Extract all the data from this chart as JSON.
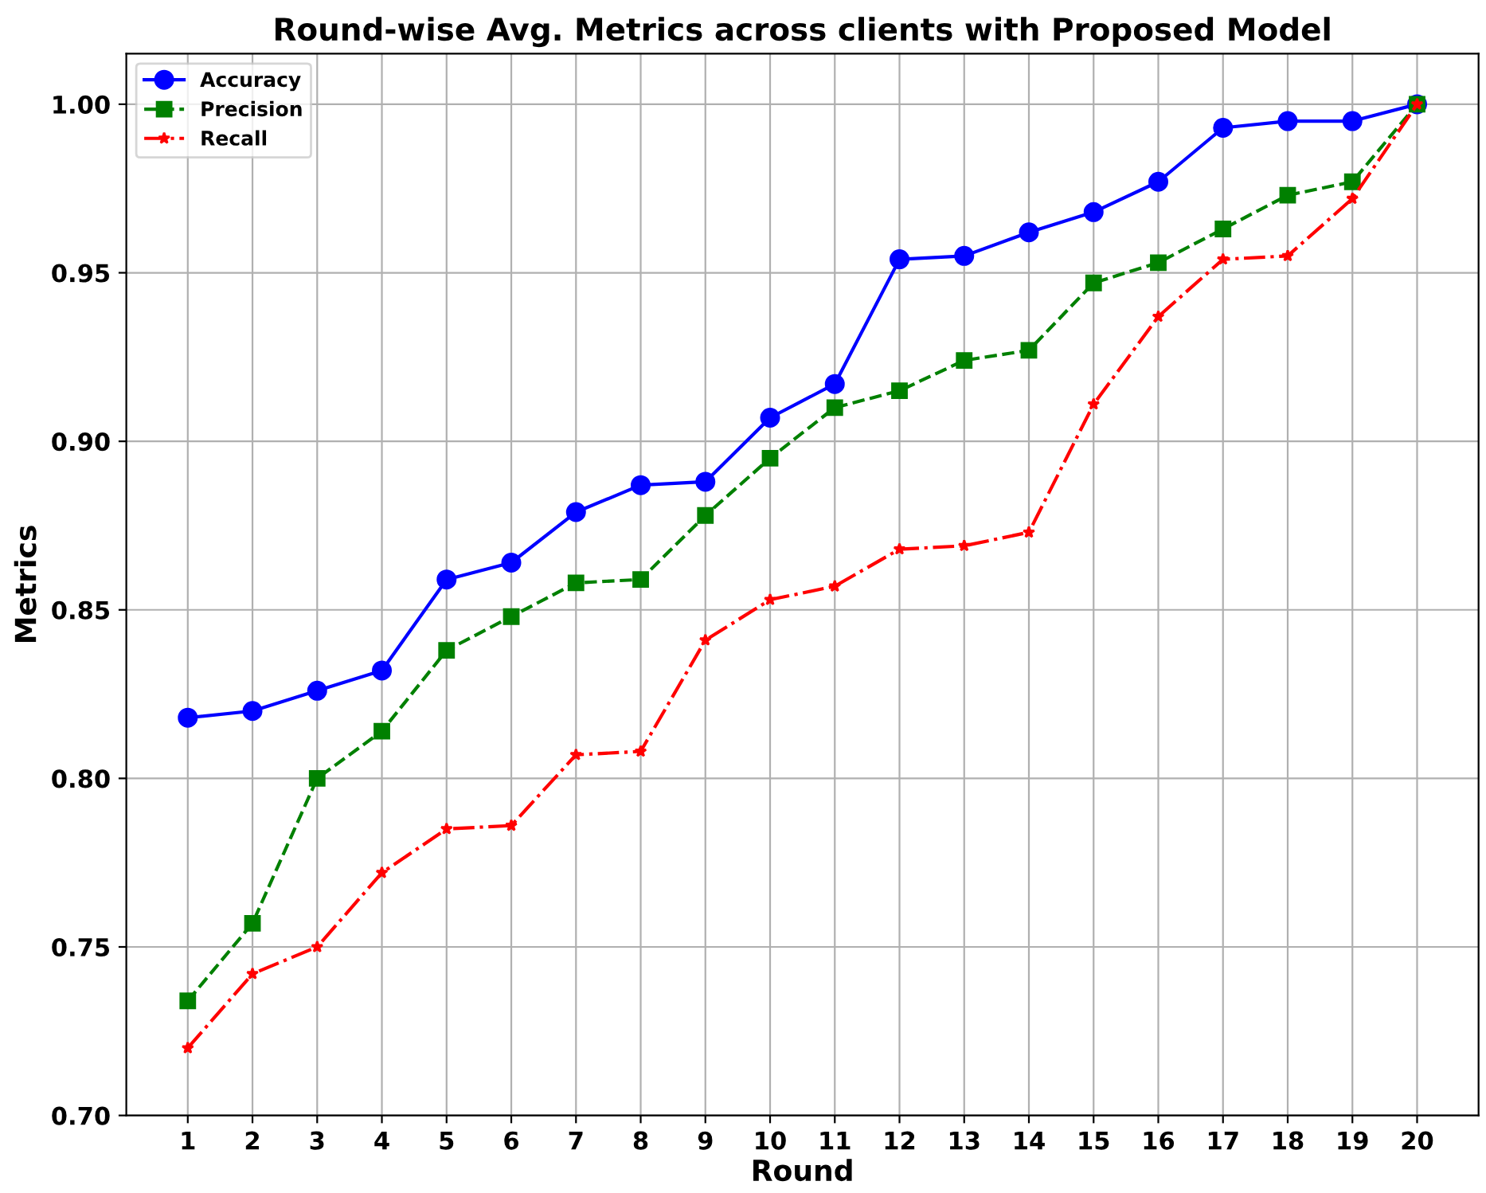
{
  "chart_data": {
    "type": "line",
    "title": "Round-wise Avg. Metrics across clients with Proposed Model",
    "xlabel": "Round",
    "ylabel": "Metrics",
    "x": [
      1,
      2,
      3,
      4,
      5,
      6,
      7,
      8,
      9,
      10,
      11,
      12,
      13,
      14,
      15,
      16,
      17,
      18,
      19,
      20
    ],
    "series": [
      {
        "name": "Accuracy",
        "color": "#0000ff",
        "marker": "circle",
        "line_style": "solid",
        "values": [
          0.818,
          0.82,
          0.826,
          0.832,
          0.859,
          0.864,
          0.879,
          0.887,
          0.888,
          0.907,
          0.917,
          0.954,
          0.955,
          0.962,
          0.968,
          0.977,
          0.993,
          0.995,
          0.995,
          1.0
        ]
      },
      {
        "name": "Precision",
        "color": "#008000",
        "marker": "square",
        "line_style": "dashed",
        "values": [
          0.734,
          0.757,
          0.8,
          0.814,
          0.838,
          0.848,
          0.858,
          0.859,
          0.878,
          0.895,
          0.91,
          0.915,
          0.924,
          0.927,
          0.947,
          0.953,
          0.963,
          0.973,
          0.977,
          1.0
        ]
      },
      {
        "name": "Recall",
        "color": "#ff0000",
        "marker": "star",
        "line_style": "dashdot",
        "values": [
          0.72,
          0.742,
          0.75,
          0.772,
          0.785,
          0.786,
          0.807,
          0.808,
          0.841,
          0.853,
          0.857,
          0.868,
          0.869,
          0.873,
          0.911,
          0.937,
          0.954,
          0.955,
          0.972,
          1.0
        ]
      }
    ],
    "xlim": [
      0.05,
      20.95
    ],
    "xticks": [
      1,
      2,
      3,
      4,
      5,
      6,
      7,
      8,
      9,
      10,
      11,
      12,
      13,
      14,
      15,
      16,
      17,
      18,
      19,
      20
    ],
    "ylim": [
      0.7,
      1.015
    ],
    "yticks": [
      {
        "value": 0.7,
        "label": "0.70"
      },
      {
        "value": 0.75,
        "label": "0.75"
      },
      {
        "value": 0.8,
        "label": "0.80"
      },
      {
        "value": 0.85,
        "label": "0.85"
      },
      {
        "value": 0.9,
        "label": "0.90"
      },
      {
        "value": 0.95,
        "label": "0.95"
      },
      {
        "value": 1.0,
        "label": "1.00"
      }
    ],
    "grid": true,
    "legend": "top left"
  }
}
